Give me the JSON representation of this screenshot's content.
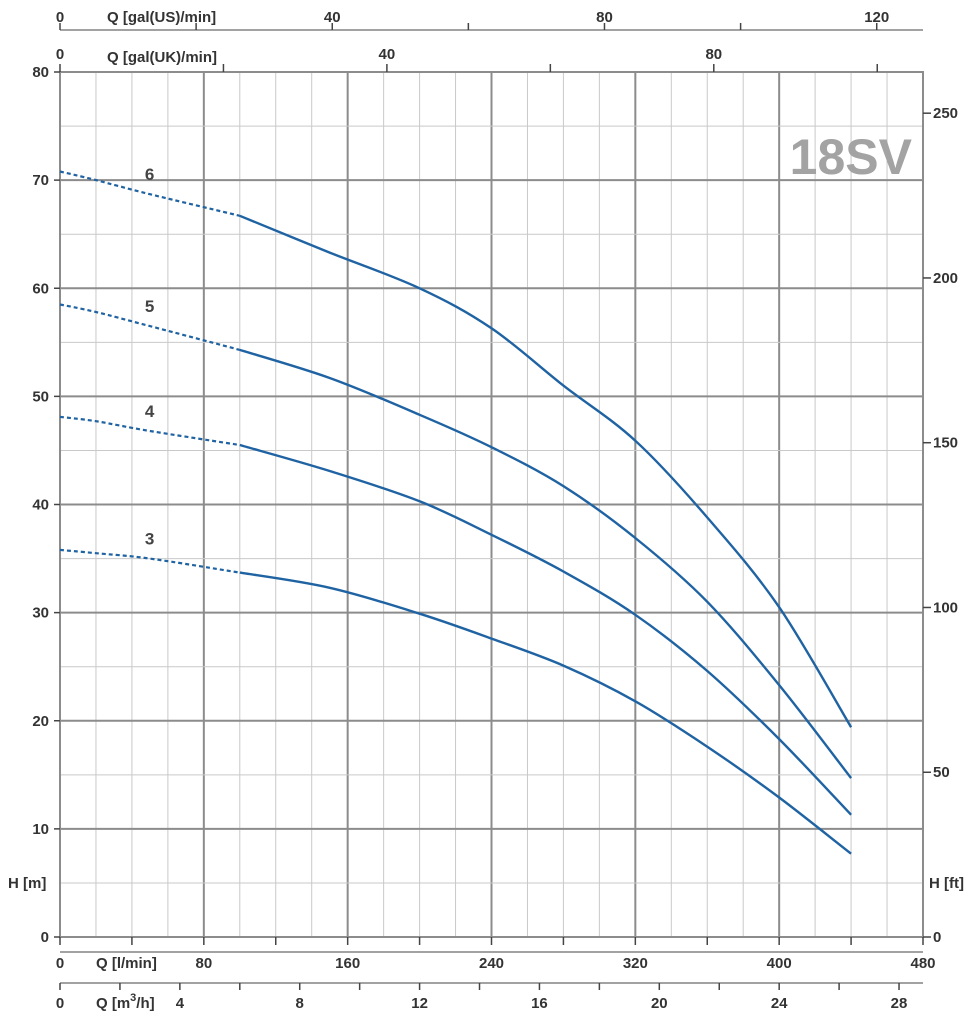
{
  "chart_data": {
    "type": "line",
    "model_label": "18SV",
    "colors": {
      "curve": "#1f63a3",
      "grid_major": "#8c8c8c",
      "grid_minor": "#c9c9c9",
      "axis": "#444444",
      "model": "#a3a3a3"
    },
    "grid": true,
    "x_axes": {
      "l_min": {
        "label": "Q [l/min]",
        "range": [
          0,
          480
        ],
        "ticks": [
          0,
          80,
          160,
          240,
          320,
          400,
          480
        ]
      },
      "m3_h": {
        "label": "Q [m",
        "label_sup": "3",
        "label_tail": "/h]",
        "range": [
          0,
          28.8
        ],
        "ticks": [
          0,
          4,
          8,
          12,
          16,
          20,
          24,
          28
        ]
      },
      "gal_us": {
        "label": "Q [gal(US)/min]",
        "range": [
          0,
          126.8
        ],
        "ticks": [
          0,
          40,
          80,
          120
        ]
      },
      "gal_uk": {
        "label": "Q [gal(UK)/min]",
        "range": [
          0,
          105.6
        ],
        "ticks": [
          0,
          40,
          80
        ]
      }
    },
    "y_axes": {
      "m": {
        "label": "H [m]",
        "range": [
          0,
          80
        ],
        "ticks": [
          0,
          10,
          20,
          30,
          40,
          50,
          60,
          70,
          80
        ]
      },
      "ft": {
        "label": "H [ft]",
        "range": [
          0,
          262.5
        ],
        "ticks": [
          0,
          50,
          100,
          150,
          200,
          250
        ]
      }
    },
    "dashed_until_x": 100,
    "series": [
      {
        "name": "6",
        "x": [
          0,
          20,
          50,
          100,
          150,
          200,
          240,
          280,
          320,
          360,
          400,
          440
        ],
        "y": [
          70.8,
          70.0,
          68.7,
          66.7,
          63.3,
          60.0,
          56.3,
          51.0,
          45.9,
          38.8,
          30.5,
          19.4
        ]
      },
      {
        "name": "5",
        "x": [
          0,
          20,
          50,
          100,
          150,
          200,
          240,
          280,
          320,
          360,
          400,
          440
        ],
        "y": [
          58.5,
          57.8,
          56.5,
          54.3,
          51.7,
          48.3,
          45.3,
          41.7,
          36.9,
          31.0,
          23.3,
          14.7
        ]
      },
      {
        "name": "4",
        "x": [
          0,
          20,
          50,
          100,
          150,
          200,
          240,
          280,
          320,
          360,
          400,
          440
        ],
        "y": [
          48.1,
          47.7,
          46.8,
          45.5,
          43.1,
          40.3,
          37.2,
          33.8,
          29.8,
          24.6,
          18.3,
          11.3
        ]
      },
      {
        "name": "3",
        "x": [
          0,
          20,
          50,
          100,
          150,
          200,
          240,
          280,
          320,
          360,
          400,
          440
        ],
        "y": [
          35.8,
          35.5,
          35.0,
          33.7,
          32.3,
          29.9,
          27.6,
          25.1,
          21.8,
          17.6,
          12.9,
          7.7
        ]
      }
    ]
  }
}
